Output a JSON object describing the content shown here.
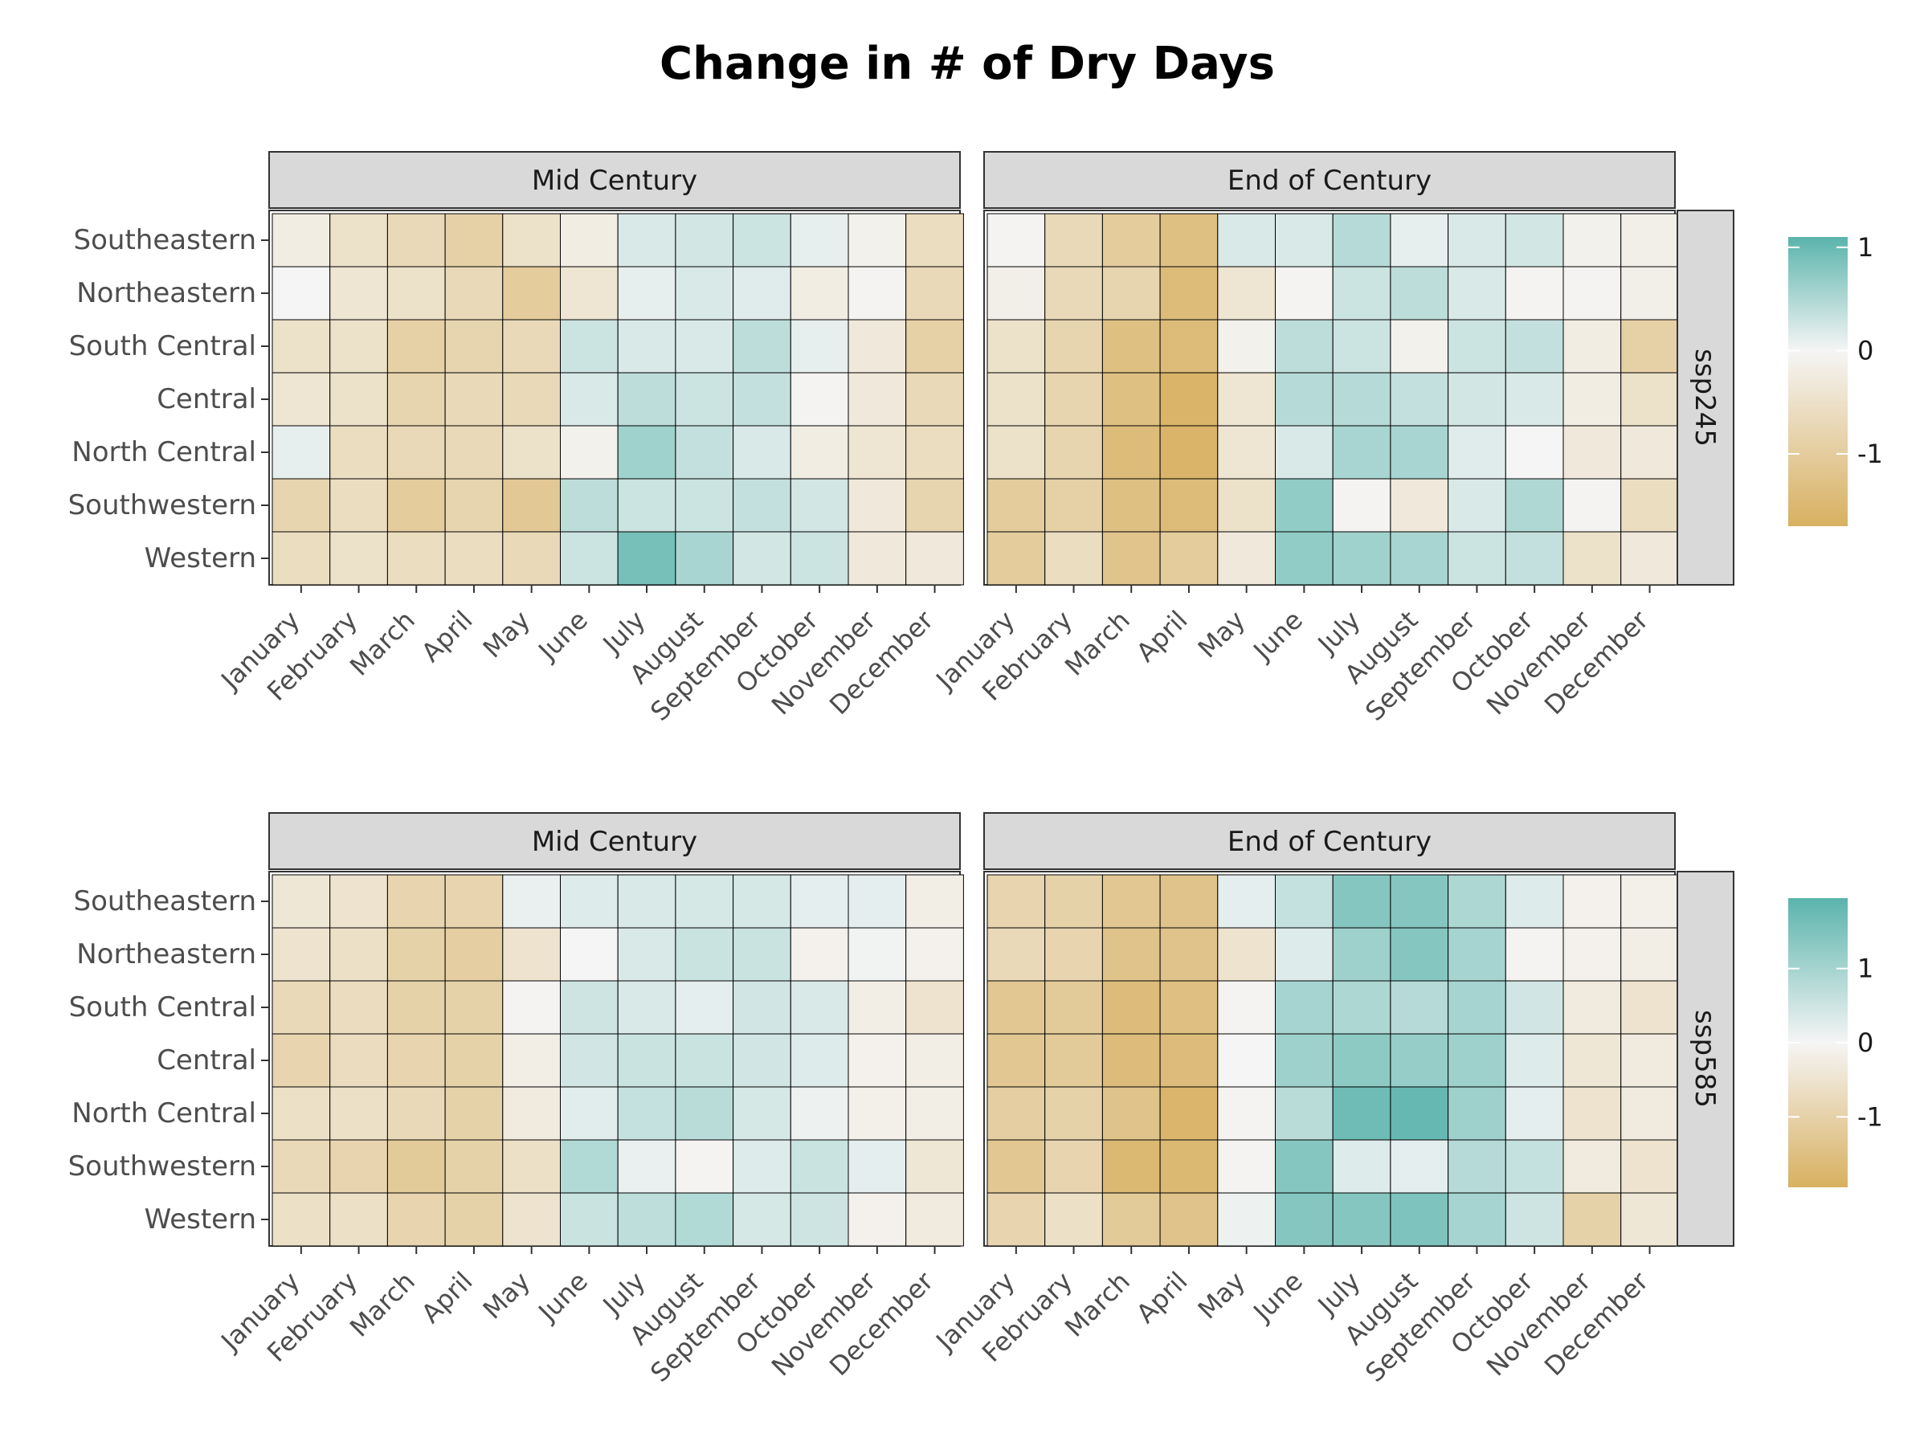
{
  "chart_data": {
    "type": "heatmap",
    "title": "Change in # of Dry Days",
    "x_categories": [
      "January",
      "February",
      "March",
      "April",
      "May",
      "June",
      "July",
      "August",
      "September",
      "October",
      "November",
      "December"
    ],
    "y_categories": [
      "Southeastern",
      "Northeastern",
      "South Central",
      "Central",
      "North Central",
      "Southwestern",
      "Western"
    ],
    "colors": {
      "low": "#d8b060",
      "mid": "#f5f5f5",
      "high": "#5ab4ac"
    },
    "panels": [
      {
        "scenario": "ssp245",
        "legend": {
          "ticks": [
            1,
            0,
            -1
          ],
          "range": [
            -1.7,
            1.1
          ]
        },
        "facets": [
          {
            "label": "Mid Century",
            "values": [
              [
                -0.2,
                -0.5,
                -0.7,
                -0.9,
                -0.5,
                -0.2,
                0.2,
                0.25,
                0.3,
                0.1,
                -0.1,
                -0.6
              ],
              [
                0.0,
                -0.4,
                -0.5,
                -0.7,
                -1.0,
                -0.4,
                0.1,
                0.2,
                0.15,
                -0.2,
                -0.05,
                -0.7
              ],
              [
                -0.5,
                -0.5,
                -0.9,
                -0.8,
                -0.7,
                0.3,
                0.2,
                0.2,
                0.4,
                0.1,
                -0.3,
                -0.9
              ],
              [
                -0.4,
                -0.5,
                -0.8,
                -0.7,
                -0.7,
                0.2,
                0.4,
                0.3,
                0.35,
                -0.05,
                -0.3,
                -0.7
              ],
              [
                0.1,
                -0.6,
                -0.7,
                -0.7,
                -0.5,
                -0.1,
                0.6,
                0.35,
                0.2,
                -0.2,
                -0.4,
                -0.6
              ],
              [
                -0.8,
                -0.6,
                -1.0,
                -0.8,
                -1.1,
                0.4,
                0.3,
                0.3,
                0.35,
                0.25,
                -0.3,
                -0.8
              ],
              [
                -0.6,
                -0.5,
                -0.6,
                -0.6,
                -0.7,
                0.3,
                0.9,
                0.55,
                0.25,
                0.3,
                -0.3,
                -0.3
              ]
            ]
          },
          {
            "label": "End of Century",
            "values": [
              [
                -0.05,
                -0.7,
                -1.0,
                -1.3,
                0.2,
                0.2,
                0.45,
                0.1,
                0.2,
                0.25,
                -0.1,
                -0.15
              ],
              [
                -0.15,
                -0.7,
                -0.8,
                -1.4,
                -0.4,
                -0.05,
                0.3,
                0.4,
                0.2,
                -0.05,
                -0.05,
                -0.15
              ],
              [
                -0.5,
                -0.8,
                -1.3,
                -1.4,
                -0.1,
                0.4,
                0.3,
                -0.1,
                0.3,
                0.35,
                -0.2,
                -0.9
              ],
              [
                -0.5,
                -0.8,
                -1.3,
                -1.6,
                -0.4,
                0.45,
                0.45,
                0.35,
                0.25,
                0.2,
                -0.2,
                -0.5
              ],
              [
                -0.5,
                -0.8,
                -1.4,
                -1.6,
                -0.4,
                0.2,
                0.55,
                0.55,
                0.15,
                0.0,
                -0.3,
                -0.3
              ],
              [
                -1.0,
                -0.9,
                -1.3,
                -1.4,
                -0.5,
                0.7,
                -0.05,
                -0.3,
                0.2,
                0.5,
                -0.05,
                -0.6
              ],
              [
                -1.0,
                -0.6,
                -1.2,
                -1.0,
                -0.3,
                0.7,
                0.6,
                0.55,
                0.3,
                0.35,
                -0.5,
                -0.3
              ]
            ]
          }
        ]
      },
      {
        "scenario": "ssp585",
        "legend": {
          "ticks": [
            1,
            0,
            -1
          ],
          "range": [
            -1.95,
            1.95
          ]
        },
        "facets": [
          {
            "label": "Mid Century",
            "values": [
              [
                -0.4,
                -0.5,
                -0.9,
                -0.9,
                0.15,
                0.3,
                0.35,
                0.4,
                0.4,
                0.2,
                0.2,
                -0.2
              ],
              [
                -0.5,
                -0.6,
                -1.0,
                -1.1,
                -0.5,
                0.0,
                0.35,
                0.55,
                0.55,
                -0.1,
                0.05,
                -0.1
              ],
              [
                -0.8,
                -0.7,
                -1.0,
                -1.0,
                -0.05,
                0.5,
                0.35,
                0.2,
                0.45,
                0.35,
                -0.2,
                -0.5
              ],
              [
                -0.9,
                -0.7,
                -0.9,
                -1.0,
                -0.2,
                0.45,
                0.55,
                0.55,
                0.45,
                0.3,
                -0.1,
                -0.2
              ],
              [
                -0.6,
                -0.6,
                -0.8,
                -1.0,
                -0.3,
                0.25,
                0.6,
                0.75,
                0.4,
                0.1,
                -0.15,
                -0.2
              ],
              [
                -0.8,
                -0.9,
                -1.2,
                -1.0,
                -0.6,
                0.85,
                0.15,
                -0.05,
                0.3,
                0.55,
                0.2,
                -0.4
              ],
              [
                -0.6,
                -0.6,
                -0.9,
                -1.0,
                -0.5,
                0.55,
                0.7,
                0.85,
                0.4,
                0.5,
                -0.1,
                -0.3
              ]
            ]
          },
          {
            "label": "End of Century",
            "values": [
              [
                -0.9,
                -1.0,
                -1.3,
                -1.4,
                0.2,
                0.6,
                1.4,
                1.4,
                0.9,
                0.3,
                -0.1,
                -0.15
              ],
              [
                -0.8,
                -0.9,
                -1.4,
                -1.4,
                -0.5,
                0.3,
                1.1,
                1.4,
                1.0,
                -0.05,
                -0.1,
                -0.2
              ],
              [
                -1.3,
                -1.2,
                -1.6,
                -1.5,
                -0.05,
                1.0,
                0.9,
                0.8,
                1.0,
                0.45,
                -0.3,
                -0.5
              ],
              [
                -1.3,
                -1.2,
                -1.6,
                -1.6,
                0.0,
                1.1,
                1.3,
                1.2,
                1.1,
                0.3,
                -0.4,
                -0.3
              ],
              [
                -1.1,
                -1.0,
                -1.4,
                -1.8,
                -0.05,
                0.75,
                1.7,
                1.8,
                1.1,
                0.2,
                -0.5,
                -0.3
              ],
              [
                -1.3,
                -0.9,
                -1.7,
                -1.7,
                -0.05,
                1.4,
                0.3,
                0.2,
                0.8,
                0.6,
                -0.3,
                -0.5
              ],
              [
                -0.9,
                -0.6,
                -1.2,
                -1.4,
                0.1,
                1.4,
                1.4,
                1.5,
                1.0,
                0.5,
                -1.0,
                -0.4
              ]
            ]
          }
        ]
      }
    ]
  }
}
